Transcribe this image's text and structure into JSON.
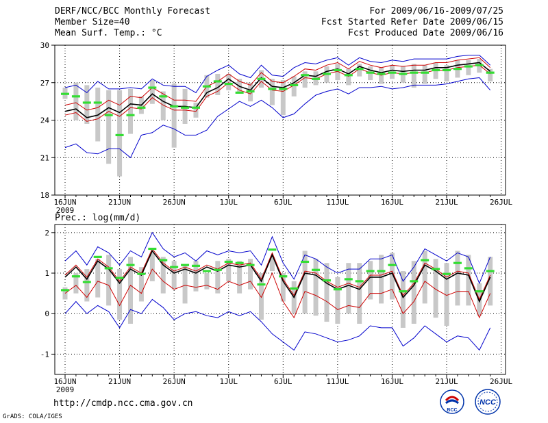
{
  "header": {
    "title": "DERF/NCC/BCC Monthly Forecast",
    "member_size": "Member Size=40",
    "variable": "Mean Surf. Temp.: °C",
    "period": "For 2009/06/16-2009/07/25",
    "started": "Fcst Started Refer Date 2009/06/15",
    "produced": "Fcst Produced Date 2009/06/16"
  },
  "footer": {
    "url": "http://cmdp.ncc.cma.gov.cn",
    "grads": "GrADS: COLA/IGES",
    "logo_bcc": "BCC",
    "logo_ncc": "NCC"
  },
  "colors": {
    "mean": "#000000",
    "inner_band": "#cc0000",
    "outer_band": "#0000cc",
    "box": "#c8c8c8",
    "marker": "#33dd33"
  },
  "chart_data": [
    {
      "type": "line",
      "title": "Mean Surf. Temp.: °C",
      "x_tick_labels": [
        "16JUN",
        "21JUN",
        "26JUN",
        "1JUL",
        "6JUL",
        "11JUL",
        "16JUL",
        "21JUL",
        "26JUL"
      ],
      "year_label": "2009",
      "ylim": [
        18,
        30
      ],
      "y_ticks": [
        "18",
        "21",
        "24",
        "27",
        "30"
      ],
      "days": 40,
      "series": [
        {
          "name": "mean",
          "values": [
            24.7,
            24.9,
            24.2,
            24.4,
            25.0,
            24.6,
            25.3,
            25.2,
            26.1,
            25.5,
            25.1,
            25.1,
            25.0,
            26.2,
            26.6,
            27.3,
            26.7,
            26.4,
            27.4,
            26.7,
            26.6,
            27.0,
            27.6,
            27.5,
            27.9,
            28.1,
            27.7,
            28.3,
            28.0,
            27.8,
            28.0,
            27.9,
            28.0,
            28.0,
            28.2,
            28.2,
            28.4,
            28.5,
            28.6,
            27.9
          ]
        },
        {
          "name": "inner_high",
          "values": [
            25.2,
            25.4,
            24.8,
            25.0,
            25.6,
            25.2,
            25.9,
            25.8,
            26.6,
            26.1,
            25.6,
            25.6,
            25.5,
            26.7,
            27.1,
            27.7,
            27.1,
            26.8,
            27.8,
            27.1,
            27.0,
            27.5,
            28.1,
            28.0,
            28.4,
            28.6,
            28.1,
            28.7,
            28.4,
            28.2,
            28.4,
            28.3,
            28.4,
            28.4,
            28.6,
            28.6,
            28.8,
            28.9,
            29.0,
            28.2
          ]
        },
        {
          "name": "inner_low",
          "values": [
            24.4,
            24.6,
            23.9,
            24.1,
            24.7,
            24.3,
            25.0,
            24.9,
            25.8,
            25.2,
            24.8,
            24.8,
            24.7,
            25.9,
            26.3,
            27.0,
            26.4,
            26.1,
            27.1,
            26.4,
            26.3,
            26.8,
            27.4,
            27.3,
            27.7,
            27.9,
            27.5,
            28.1,
            27.8,
            27.6,
            27.8,
            27.7,
            27.8,
            27.8,
            28.0,
            28.0,
            28.2,
            28.3,
            28.4,
            27.7
          ]
        },
        {
          "name": "outer_high",
          "values": [
            26.6,
            26.8,
            26.2,
            27.1,
            26.5,
            26.5,
            26.6,
            26.5,
            27.3,
            26.8,
            26.7,
            26.7,
            26.2,
            27.5,
            28.0,
            28.4,
            27.7,
            27.4,
            28.4,
            27.6,
            27.5,
            28.2,
            28.6,
            28.5,
            28.8,
            29.0,
            28.4,
            29.0,
            28.7,
            28.6,
            28.8,
            28.7,
            28.9,
            28.9,
            28.9,
            28.9,
            29.1,
            29.2,
            29.2,
            28.4
          ]
        },
        {
          "name": "outer_low",
          "values": [
            21.8,
            22.1,
            21.4,
            21.3,
            21.7,
            21.7,
            21.0,
            22.8,
            23.0,
            23.6,
            23.3,
            22.8,
            22.8,
            23.2,
            24.3,
            24.9,
            25.5,
            25.1,
            25.6,
            25.0,
            24.2,
            24.5,
            25.3,
            26.0,
            26.3,
            26.5,
            26.1,
            26.6,
            26.6,
            26.7,
            26.5,
            26.6,
            26.8,
            26.8,
            26.8,
            26.9,
            27.1,
            27.3,
            27.4,
            26.4
          ]
        },
        {
          "name": "box_top",
          "values": [
            26.6,
            27.0,
            26.8,
            26.6,
            26.4,
            26.4,
            26.5,
            25.9,
            27.2,
            26.3,
            26.9,
            26.5,
            25.4,
            27.6,
            27.7,
            27.7,
            27.3,
            27.0,
            28.0,
            27.3,
            27.2,
            27.5,
            27.9,
            27.9,
            28.3,
            28.5,
            28.1,
            28.5,
            28.3,
            28.2,
            28.4,
            28.3,
            28.5,
            28.4,
            28.6,
            28.4,
            28.8,
            28.8,
            28.9,
            28.1
          ]
        },
        {
          "name": "box_bottom",
          "values": [
            25.7,
            24.0,
            23.7,
            22.3,
            20.5,
            19.5,
            22.9,
            24.5,
            25.3,
            24.0,
            21.8,
            23.7,
            24.2,
            25.8,
            26.0,
            26.4,
            26.2,
            25.5,
            26.6,
            25.2,
            24.4,
            25.9,
            26.6,
            26.8,
            27.0,
            27.2,
            26.8,
            27.5,
            27.2,
            26.9,
            27.3,
            27.0,
            26.6,
            26.9,
            27.3,
            27.1,
            27.4,
            27.6,
            27.8,
            27.1
          ]
        },
        {
          "name": "marker",
          "values": [
            26.1,
            25.9,
            25.4,
            25.4,
            24.4,
            22.8,
            24.4,
            25.0,
            26.6,
            25.9,
            25.1,
            25.0,
            25.0,
            26.7,
            27.1,
            26.9,
            26.2,
            26.3,
            27.3,
            26.5,
            26.5,
            26.8,
            27.6,
            27.3,
            27.7,
            28.0,
            27.6,
            28.1,
            27.8,
            27.7,
            27.8,
            27.7,
            27.8,
            27.8,
            28.0,
            28.0,
            28.1,
            28.3,
            28.4,
            27.8
          ]
        }
      ]
    },
    {
      "type": "line",
      "title": "Prec.: log(mm/d)",
      "x_tick_labels": [
        "16JUN",
        "21JUN",
        "26JUN",
        "1JUL",
        "6JUL",
        "11JUL",
        "16JUL",
        "21JUL",
        "26JUL"
      ],
      "year_label": "2009",
      "ylim": [
        -1.5,
        2.2
      ],
      "y_ticks": [
        "-1",
        "0",
        "1",
        "2"
      ],
      "days": 40,
      "series": [
        {
          "name": "mean",
          "values": [
            0.9,
            1.15,
            0.85,
            1.3,
            1.1,
            0.75,
            1.1,
            0.95,
            1.55,
            1.2,
            1.0,
            1.1,
            1.0,
            1.15,
            1.05,
            1.2,
            1.15,
            1.2,
            0.8,
            1.45,
            0.8,
            0.4,
            1.0,
            0.95,
            0.75,
            0.6,
            0.7,
            0.6,
            0.9,
            0.9,
            1.0,
            0.4,
            0.7,
            1.2,
            1.05,
            0.85,
            1.0,
            0.95,
            0.3,
            0.9
          ]
        },
        {
          "name": "inner_high",
          "values": [
            0.95,
            1.2,
            0.9,
            1.35,
            1.15,
            0.8,
            1.15,
            1.0,
            1.6,
            1.25,
            1.05,
            1.15,
            1.05,
            1.2,
            1.1,
            1.25,
            1.2,
            1.25,
            0.85,
            1.5,
            0.85,
            0.45,
            1.05,
            1.0,
            0.8,
            0.65,
            0.75,
            0.65,
            0.95,
            0.95,
            1.05,
            0.45,
            0.75,
            1.25,
            1.1,
            0.9,
            1.05,
            1.0,
            0.35,
            0.95
          ]
        },
        {
          "name": "inner_low",
          "values": [
            0.5,
            0.7,
            0.4,
            0.8,
            0.7,
            0.2,
            0.7,
            0.5,
            1.1,
            0.8,
            0.6,
            0.7,
            0.65,
            0.7,
            0.6,
            0.8,
            0.7,
            0.8,
            0.4,
            1.0,
            0.3,
            -0.1,
            0.55,
            0.45,
            0.3,
            0.1,
            0.2,
            0.15,
            0.5,
            0.5,
            0.6,
            0.0,
            0.3,
            0.8,
            0.6,
            0.45,
            0.55,
            0.55,
            -0.1,
            0.5
          ]
        },
        {
          "name": "outer_high",
          "values": [
            1.3,
            1.55,
            1.2,
            1.65,
            1.5,
            1.2,
            1.55,
            1.4,
            2.0,
            1.6,
            1.4,
            1.5,
            1.3,
            1.55,
            1.45,
            1.55,
            1.5,
            1.55,
            1.2,
            1.9,
            1.25,
            0.85,
            1.45,
            1.35,
            1.15,
            1.0,
            1.1,
            1.1,
            1.35,
            1.35,
            1.45,
            0.8,
            1.15,
            1.6,
            1.45,
            1.3,
            1.5,
            1.4,
            0.75,
            1.4
          ]
        },
        {
          "name": "outer_low",
          "values": [
            0.0,
            0.3,
            0.0,
            0.2,
            0.05,
            -0.35,
            0.1,
            0.0,
            0.35,
            0.15,
            -0.15,
            0.0,
            0.05,
            -0.05,
            -0.1,
            0.05,
            -0.05,
            0.05,
            -0.2,
            -0.5,
            -0.7,
            -0.9,
            -0.45,
            -0.5,
            -0.6,
            -0.7,
            -0.65,
            -0.55,
            -0.3,
            -0.35,
            -0.35,
            -0.8,
            -0.6,
            -0.3,
            -0.5,
            -0.7,
            -0.55,
            -0.6,
            -0.9,
            -0.35
          ]
        },
        {
          "name": "box_top",
          "values": [
            0.65,
            1.0,
            1.1,
            1.35,
            1.45,
            1.1,
            1.4,
            1.15,
            1.5,
            1.4,
            1.3,
            1.2,
            1.3,
            1.0,
            1.3,
            1.35,
            1.3,
            1.35,
            1.0,
            1.4,
            1.0,
            0.8,
            1.55,
            1.35,
            1.25,
            0.9,
            1.25,
            1.25,
            1.3,
            1.45,
            1.5,
            1.05,
            1.3,
            1.55,
            1.35,
            1.25,
            1.55,
            1.45,
            0.75,
            1.4
          ]
        },
        {
          "name": "box_bottom",
          "values": [
            0.35,
            0.5,
            0.3,
            0.4,
            0.2,
            -0.15,
            -0.25,
            0.3,
            0.8,
            0.5,
            0.6,
            0.25,
            0.55,
            0.6,
            0.5,
            0.8,
            0.5,
            0.6,
            -0.15,
            1.05,
            0.3,
            0.0,
            0.0,
            -0.05,
            -0.2,
            -0.25,
            0.0,
            -0.25,
            0.35,
            0.25,
            0.35,
            -0.35,
            -0.25,
            0.25,
            -0.1,
            -0.3,
            0.2,
            0.2,
            -0.05,
            0.2
          ]
        },
        {
          "name": "marker",
          "values": [
            0.58,
            0.92,
            0.78,
            1.4,
            1.12,
            0.88,
            1.2,
            0.98,
            1.6,
            1.32,
            1.15,
            1.2,
            1.18,
            1.05,
            1.08,
            1.28,
            1.25,
            1.2,
            0.72,
            1.58,
            0.92,
            0.62,
            1.28,
            1.08,
            0.82,
            0.6,
            0.85,
            0.8,
            1.05,
            1.05,
            1.2,
            0.55,
            0.8,
            1.32,
            1.1,
            0.98,
            1.25,
            1.12,
            0.55,
            1.05
          ]
        }
      ]
    }
  ]
}
